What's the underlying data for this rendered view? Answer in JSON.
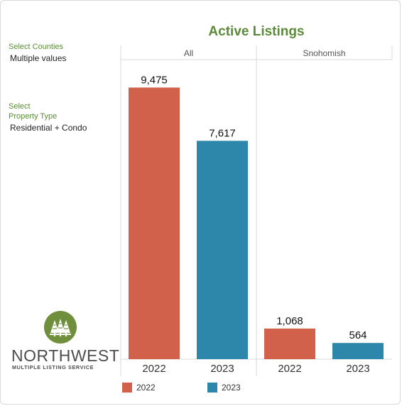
{
  "filters": [
    {
      "label": "Select Counties",
      "value": "Multiple values"
    },
    {
      "label_lines": [
        "Select",
        "Property Type"
      ],
      "value": "Residential + Condo"
    }
  ],
  "logo": {
    "name": "NORTHWEST",
    "subtitle": "MULTIPLE LISTING SERVICE",
    "icon": "tree-logo-icon"
  },
  "colors": {
    "y2022": "#d1614a",
    "y2023": "#2c87aa",
    "title": "#5b8a3a"
  },
  "chart_data": {
    "type": "bar",
    "title": "Active Listings",
    "panels": [
      "All",
      "Snohomish"
    ],
    "categories": [
      "2022",
      "2023"
    ],
    "values": {
      "All": [
        9475,
        7617
      ],
      "Snohomish": [
        1068,
        564
      ]
    },
    "data_labels": {
      "All": [
        "9,475",
        "7,617"
      ],
      "Snohomish": [
        "1,068",
        "564"
      ]
    },
    "ylim": [
      0,
      10400
    ],
    "legend": {
      "position": "bottom",
      "entries": [
        "2022",
        "2023"
      ]
    },
    "grid": false
  }
}
